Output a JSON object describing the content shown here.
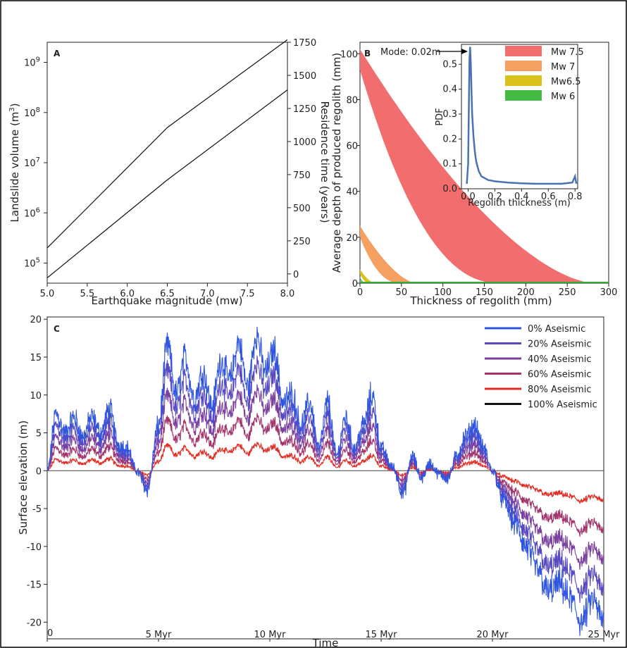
{
  "chart_data": [
    {
      "panel": "A",
      "type": "line",
      "xlabel": "Earthquake magnitude (mw)",
      "ylabel_left_prefix": "Landslide volume (m",
      "ylabel_left_sup": "3",
      "ylabel_left_suffix": ")",
      "ylabel_right": "Residence time (years)",
      "xlim": [
        5.0,
        8.0
      ],
      "ylim_left_log10": [
        4.6,
        9.4
      ],
      "ylim_right": [
        -70,
        1750
      ],
      "x_ticks": [
        "5.0",
        "5.5",
        "6.0",
        "6.5",
        "7.0",
        "7.5",
        "8.0"
      ],
      "y_left_ticks": [
        {
          "base": "10",
          "exp": "5",
          "log": 5
        },
        {
          "base": "10",
          "exp": "6",
          "log": 6
        },
        {
          "base": "10",
          "exp": "7",
          "log": 7
        },
        {
          "base": "10",
          "exp": "8",
          "log": 8
        },
        {
          "base": "10",
          "exp": "9",
          "log": 9
        }
      ],
      "y_right_ticks": [
        0,
        250,
        500,
        750,
        1000,
        1250,
        1500,
        1750
      ],
      "series": [
        {
          "axis": "left",
          "x": [
            5.0,
            6.5,
            8.0
          ],
          "y_log10": [
            5.3,
            7.7,
            9.45
          ]
        },
        {
          "axis": "right",
          "x": [
            5.0,
            6.5,
            8.0
          ],
          "y": [
            -30,
            710,
            1390
          ]
        }
      ]
    },
    {
      "panel": "B",
      "type": "area",
      "xlabel": "Thickness of regolith (mm)",
      "ylabel": "Average depth of produced regolith (mm)",
      "xlim": [
        0,
        300
      ],
      "ylim": [
        0,
        105
      ],
      "x_ticks": [
        0,
        50,
        100,
        150,
        200,
        250,
        300
      ],
      "y_ticks": [
        0,
        20,
        40,
        60,
        80,
        100
      ],
      "legend": [
        {
          "name": "Mw 7.5",
          "color": "#f26d6d"
        },
        {
          "name": "Mw 7",
          "color": "#f5a060"
        },
        {
          "name": "Mw6.5",
          "color": "#d9c21a"
        },
        {
          "name": "Mw 6",
          "color": "#44bb44"
        }
      ],
      "bands": [
        {
          "name": "Mw 7.5",
          "max_upper": 102,
          "max_lower": 93,
          "zero_upper": 282,
          "zero_lower": 168
        },
        {
          "name": "Mw 7",
          "max_upper": 25,
          "max_lower": 20,
          "zero_upper": 68,
          "zero_lower": 48
        },
        {
          "name": "Mw6.5",
          "max_upper": 6,
          "max_lower": 4,
          "zero_upper": 18,
          "zero_lower": 12
        },
        {
          "name": "Mw 6",
          "max_upper": 2.5,
          "max_lower": 2,
          "zero_upper": 6,
          "zero_lower": 4
        }
      ],
      "inset": {
        "xlabel": "Regolith thickness (m)",
        "ylabel": "PDF",
        "xlim": [
          -0.05,
          0.82
        ],
        "ylim": [
          0,
          0.58
        ],
        "x_ticks": [
          0.0,
          0.2,
          0.4,
          0.6,
          0.8
        ],
        "x_tick_labels": [
          "0.0",
          "0.2",
          "0.4",
          "0.6",
          "0.8"
        ],
        "y_ticks": [
          0.0,
          0.1,
          0.2,
          0.3,
          0.4,
          0.5
        ],
        "y_tick_labels": [
          "0.0",
          "0.1",
          "0.2",
          "0.3",
          "0.4",
          "0.5"
        ],
        "annotation": "Mode: 0.02m",
        "color": "#4a72b0",
        "x": [
          -0.01,
          0.0,
          0.005,
          0.01,
          0.015,
          0.02,
          0.025,
          0.03,
          0.04,
          0.05,
          0.06,
          0.08,
          0.1,
          0.15,
          0.2,
          0.3,
          0.4,
          0.5,
          0.6,
          0.7,
          0.78,
          0.8,
          0.81
        ],
        "y": [
          0.02,
          0.1,
          0.3,
          0.52,
          0.57,
          0.5,
          0.4,
          0.3,
          0.21,
          0.15,
          0.11,
          0.07,
          0.05,
          0.035,
          0.03,
          0.025,
          0.022,
          0.02,
          0.02,
          0.02,
          0.025,
          0.05,
          0.02
        ]
      }
    },
    {
      "panel": "C",
      "type": "line",
      "xlabel": "Time",
      "ylabel": "Surface elevation (m)",
      "xlim": [
        0,
        25
      ],
      "ylim": [
        -22.2,
        20.3
      ],
      "x_ticks": [
        {
          "v": 0,
          "label": "0"
        },
        {
          "v": 5,
          "label": "5 Myr"
        },
        {
          "v": 10,
          "label": "10 Myr"
        },
        {
          "v": 15,
          "label": "15 Myr"
        },
        {
          "v": 20,
          "label": "20 Myr"
        },
        {
          "v": 25,
          "label": "25 Myr"
        }
      ],
      "y_ticks": [
        -20,
        -15,
        -10,
        -5,
        0,
        5,
        10,
        15,
        20
      ],
      "base": {
        "t": [
          0,
          0.4,
          0.8,
          1.2,
          1.6,
          2.0,
          2.4,
          2.8,
          3.2,
          3.6,
          4.0,
          4.5,
          5.0,
          5.4,
          5.8,
          6.2,
          6.6,
          7.0,
          7.4,
          7.8,
          8.2,
          8.6,
          9.0,
          9.4,
          9.8,
          10.2,
          10.6,
          11.0,
          11.4,
          11.8,
          12.2,
          12.6,
          13.0,
          13.4,
          13.8,
          14.2,
          14.6,
          15.0,
          15.5,
          16.0,
          16.4,
          16.8,
          17.2,
          17.6,
          18.0,
          18.4,
          18.8,
          19.2,
          19.6,
          20.0,
          20.5,
          21.0,
          21.5,
          22.0,
          22.5,
          23.0,
          23.5,
          24.0,
          24.5,
          25.0
        ],
        "e": [
          0,
          7.5,
          5,
          7,
          4.5,
          7,
          5,
          8,
          3.5,
          3,
          0,
          -2.5,
          6,
          16.5,
          10,
          15,
          9.5,
          13,
          8.5,
          14.5,
          12,
          17,
          11,
          18,
          13,
          16,
          9,
          10,
          6,
          9,
          3,
          9,
          2,
          7,
          3,
          6,
          10,
          3,
          0.5,
          -3,
          2,
          -1,
          1,
          -0.5,
          -1,
          2,
          4.5,
          6,
          3,
          0,
          -4,
          -7,
          -10,
          -13,
          -16,
          -15,
          -17,
          -20,
          -17,
          -20
        ]
      },
      "noise_amp": 1.1,
      "series": [
        {
          "name": "0% Aseismic",
          "color": "#2f55e0",
          "scale": 1.0
        },
        {
          "name": "20% Aseismic",
          "color": "#5849c2",
          "scale": 0.8
        },
        {
          "name": "40% Aseismic",
          "color": "#7a3fa0",
          "scale": 0.6
        },
        {
          "name": "60% Aseismic",
          "color": "#a3336b",
          "scale": 0.4
        },
        {
          "name": "80% Aseismic",
          "color": "#e22b22",
          "scale": 0.2
        },
        {
          "name": "100% Aseismic",
          "color": "#111111",
          "scale": 0.0
        }
      ]
    }
  ]
}
